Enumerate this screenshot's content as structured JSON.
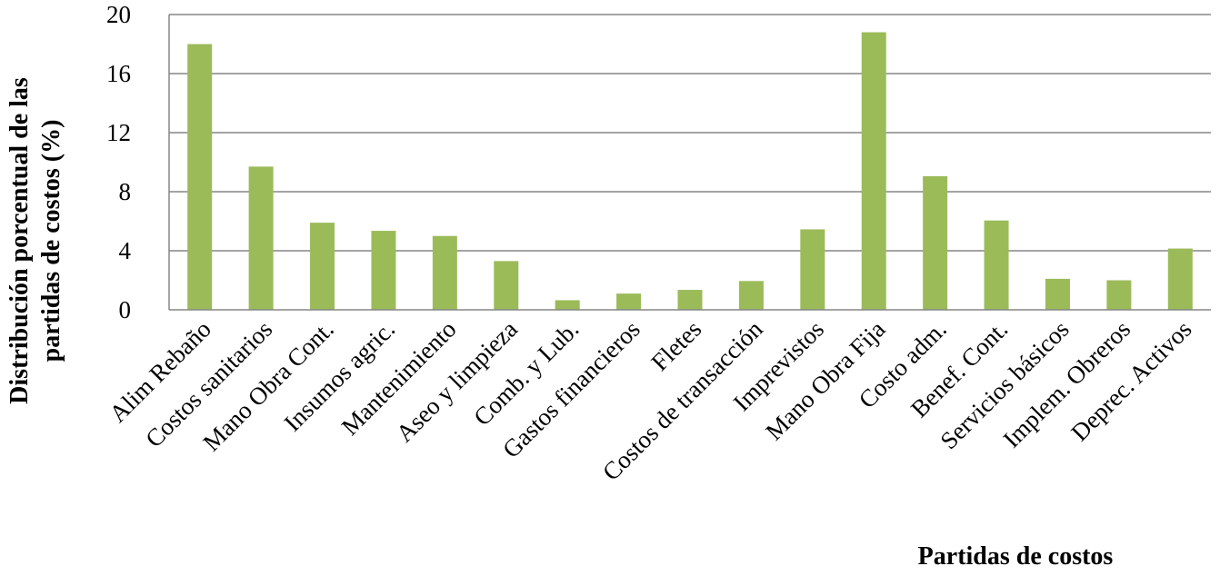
{
  "chart_data": {
    "type": "bar",
    "xlabel": "Partidas de costos",
    "ylabel_lines": [
      "Distribución porcentual de las",
      "partidas de costos (%)"
    ],
    "ylim": [
      0,
      20
    ],
    "yticks": [
      0,
      4,
      8,
      12,
      16,
      20
    ],
    "grid": true,
    "legend": "none",
    "bar_color": "#9BBB59",
    "categories": [
      "Alim Rebaño",
      "Costos sanitarios",
      "Mano Obra Cont.",
      "Insumos agric.",
      "Mantenimiento",
      "Aseo y limpieza",
      "Comb. y Lub.",
      "Gastos financieros",
      "Fletes",
      "Costos de transacción",
      "Imprevistos",
      "Mano Obra Fija",
      "Costo adm.",
      "Benef. Cont.",
      "Servicios básicos",
      "Implem. Obreros",
      "Deprec. Activos"
    ],
    "values": [
      18.0,
      9.7,
      5.9,
      5.35,
      5.0,
      3.3,
      0.65,
      1.1,
      1.35,
      1.95,
      5.45,
      18.8,
      9.05,
      6.05,
      2.1,
      2.0,
      4.15
    ]
  }
}
